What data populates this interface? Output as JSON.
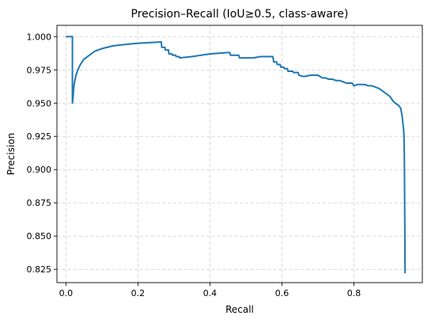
{
  "chart_data": {
    "type": "line",
    "title": "Precision–Recall (IoU≥0.5, class-aware)",
    "xlabel": "Recall",
    "ylabel": "Precision",
    "xlim": [
      -0.025,
      0.99
    ],
    "ylim": [
      0.815,
      1.0085
    ],
    "xticks": [
      0.0,
      0.2,
      0.4,
      0.6,
      0.8
    ],
    "xtick_labels": [
      "0.0",
      "0.2",
      "0.4",
      "0.6",
      "0.8"
    ],
    "yticks": [
      0.825,
      0.85,
      0.875,
      0.9,
      0.925,
      0.95,
      0.975,
      1.0
    ],
    "ytick_labels": [
      "0.825",
      "0.850",
      "0.875",
      "0.900",
      "0.925",
      "0.950",
      "0.975",
      "1.000"
    ],
    "grid": true,
    "legend": "none",
    "series": [
      {
        "color": "#1f77b4",
        "x": [
          0.0,
          0.018,
          0.018,
          0.02,
          0.021,
          0.024,
          0.028,
          0.033,
          0.04,
          0.05,
          0.065,
          0.08,
          0.1,
          0.13,
          0.16,
          0.2,
          0.23,
          0.265,
          0.266,
          0.275,
          0.276,
          0.285,
          0.286,
          0.295,
          0.296,
          0.305,
          0.306,
          0.315,
          0.316,
          0.35,
          0.4,
          0.45,
          0.455,
          0.457,
          0.47,
          0.48,
          0.482,
          0.5,
          0.502,
          0.52,
          0.54,
          0.56,
          0.575,
          0.577,
          0.585,
          0.587,
          0.595,
          0.597,
          0.605,
          0.607,
          0.615,
          0.617,
          0.63,
          0.632,
          0.645,
          0.647,
          0.66,
          0.662,
          0.68,
          0.7,
          0.712,
          0.72,
          0.73,
          0.74,
          0.75,
          0.76,
          0.77,
          0.78,
          0.795,
          0.8,
          0.81,
          0.82,
          0.83,
          0.84,
          0.85,
          0.86,
          0.87,
          0.88,
          0.89,
          0.9,
          0.905,
          0.91,
          0.915,
          0.92,
          0.925,
          0.93,
          0.932,
          0.934,
          0.936,
          0.938,
          0.939,
          0.94,
          0.941,
          0.942
        ],
        "y": [
          1.0,
          1.0,
          0.95,
          0.955,
          0.96,
          0.966,
          0.971,
          0.975,
          0.979,
          0.983,
          0.986,
          0.989,
          0.991,
          0.993,
          0.994,
          0.995,
          0.9955,
          0.996,
          0.992,
          0.992,
          0.99,
          0.99,
          0.987,
          0.987,
          0.986,
          0.986,
          0.985,
          0.985,
          0.984,
          0.985,
          0.987,
          0.988,
          0.988,
          0.986,
          0.986,
          0.986,
          0.984,
          0.984,
          0.984,
          0.984,
          0.985,
          0.985,
          0.985,
          0.981,
          0.981,
          0.979,
          0.979,
          0.977,
          0.977,
          0.976,
          0.976,
          0.974,
          0.974,
          0.973,
          0.973,
          0.971,
          0.97,
          0.97,
          0.971,
          0.971,
          0.969,
          0.969,
          0.968,
          0.968,
          0.967,
          0.967,
          0.966,
          0.965,
          0.965,
          0.963,
          0.964,
          0.964,
          0.964,
          0.963,
          0.963,
          0.962,
          0.961,
          0.959,
          0.957,
          0.955,
          0.953,
          0.951,
          0.95,
          0.949,
          0.948,
          0.946,
          0.943,
          0.94,
          0.935,
          0.93,
          0.925,
          0.91,
          0.87,
          0.822
        ]
      }
    ]
  }
}
